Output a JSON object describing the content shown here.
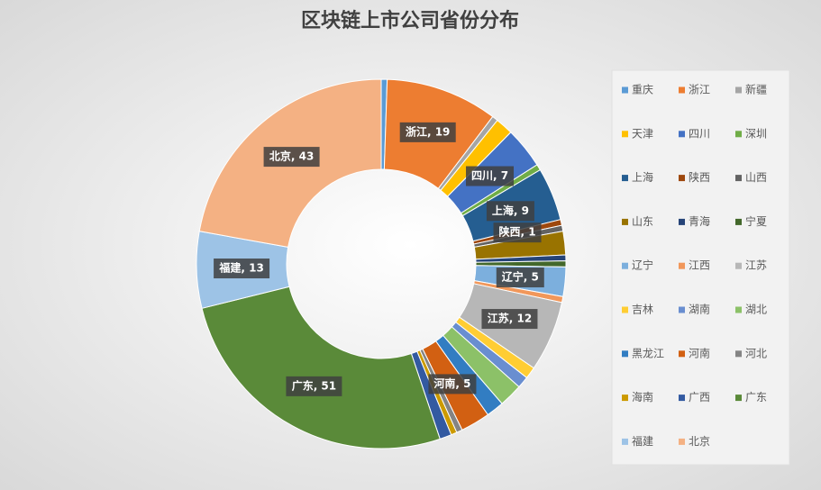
{
  "chart_data": {
    "type": "donut",
    "title": "区块链上市公司省份分布",
    "categories": [
      "重庆",
      "浙江",
      "新疆",
      "天津",
      "四川",
      "深圳",
      "上海",
      "陕西",
      "山西",
      "山东",
      "青海",
      "宁夏",
      "辽宁",
      "江西",
      "江苏",
      "吉林",
      "湖南",
      "湖北",
      "黑龙江",
      "河南",
      "河北",
      "海南",
      "广西",
      "广东",
      "福建",
      "北京"
    ],
    "values": [
      1,
      19,
      1,
      3,
      7,
      1,
      9,
      1,
      1,
      4,
      1,
      1,
      5,
      1,
      12,
      2,
      2,
      4,
      3,
      5,
      1,
      1,
      2,
      51,
      13,
      43
    ],
    "value_labels": [
      null,
      "浙江, 19",
      null,
      null,
      "四川, 7",
      null,
      "上海, 9",
      "陕西, 1",
      null,
      null,
      null,
      null,
      "辽宁, 5",
      null,
      "江苏, 12",
      null,
      null,
      null,
      null,
      "河南, 5",
      null,
      null,
      null,
      "广东, 51",
      "福建, 13",
      "北京, 43"
    ],
    "colors": [
      "#5b9bd5",
      "#ed7d31",
      "#a5a5a5",
      "#ffc000",
      "#4472c4",
      "#70ad47",
      "#255e91",
      "#9e480e",
      "#636363",
      "#997300",
      "#264478",
      "#43682b",
      "#7cafdd",
      "#f1975a",
      "#b7b7b7",
      "#ffcd33",
      "#698ed0",
      "#8cc168",
      "#327dc2",
      "#d26012",
      "#848484",
      "#cc9a00",
      "#335aa1",
      "#5a8a39",
      "#9dc3e6",
      "#f4b183"
    ],
    "legend": "right"
  }
}
